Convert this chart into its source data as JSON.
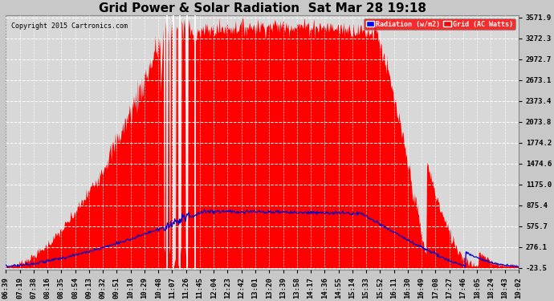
{
  "title": "Grid Power & Solar Radiation  Sat Mar 28 19:18",
  "copyright": "Copyright 2015 Cartronics.com",
  "legend_radiation": "Radiation (w/m2)",
  "legend_grid": "Grid (AC Watts)",
  "yticks": [
    3571.9,
    3272.3,
    2972.7,
    2673.1,
    2373.4,
    2073.8,
    1774.2,
    1474.6,
    1175.0,
    875.4,
    575.7,
    276.1,
    -23.5
  ],
  "ymin": -23.5,
  "ymax": 3571.9,
  "bg_color": "#c8c8c8",
  "plot_bg_color": "#d8d8d8",
  "grid_color": "#ffffff",
  "radiation_color": "#ff0000",
  "grid_line_color": "#0000cc",
  "title_fontsize": 11,
  "tick_fontsize": 6.5,
  "x_labels": [
    "06:39",
    "07:19",
    "07:38",
    "08:16",
    "08:35",
    "08:54",
    "09:13",
    "09:32",
    "09:51",
    "10:10",
    "10:29",
    "10:48",
    "11:07",
    "11:26",
    "11:45",
    "12:04",
    "12:23",
    "12:42",
    "13:01",
    "13:20",
    "13:39",
    "13:58",
    "14:17",
    "14:36",
    "14:55",
    "15:14",
    "15:33",
    "15:52",
    "16:11",
    "16:30",
    "16:49",
    "17:08",
    "17:27",
    "17:46",
    "18:05",
    "18:24",
    "18:43",
    "19:02"
  ]
}
